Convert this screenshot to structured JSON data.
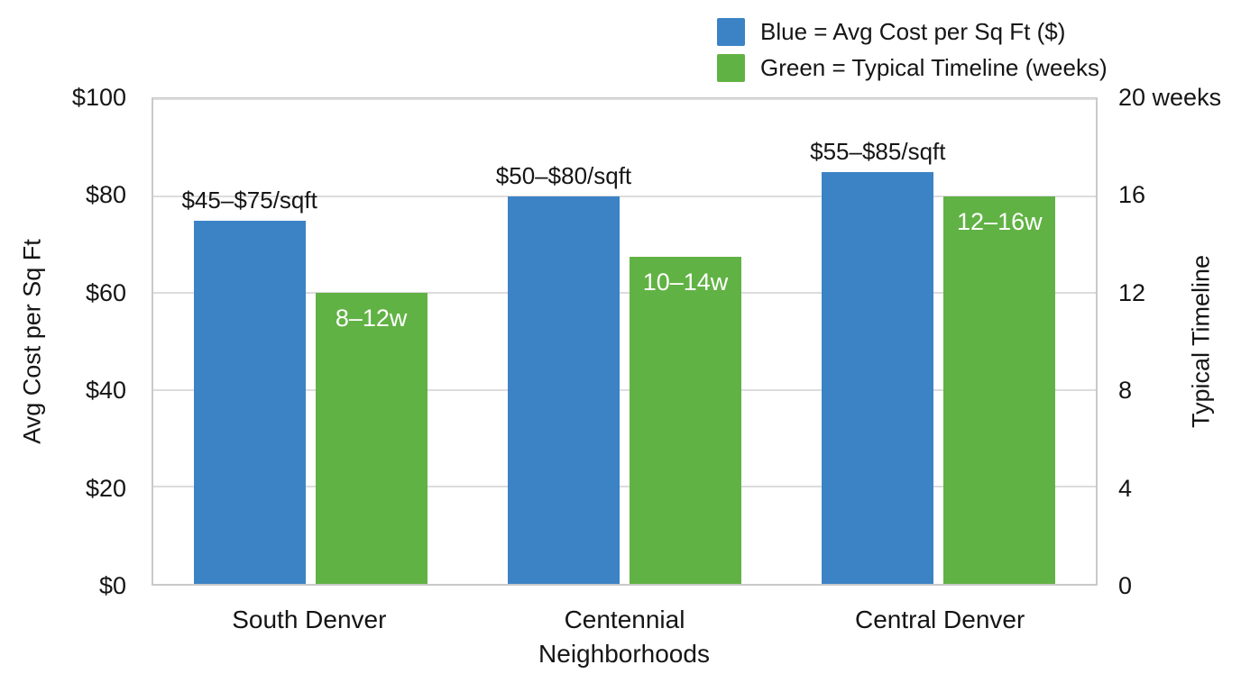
{
  "chart_data": {
    "type": "bar",
    "categories": [
      "South Denver",
      "Centennial",
      "Central Denver"
    ],
    "series": [
      {
        "name": "Avg Cost per Sq Ft ($)",
        "axis": "left",
        "color": "#3c83c5",
        "values": [
          75,
          80,
          85
        ],
        "bar_labels": [
          "$45–$75/sqft",
          "$50–$80/sqft",
          "$55–$85/sqft"
        ],
        "label_position": "above"
      },
      {
        "name": "Typical Timeline (weeks)",
        "axis": "right",
        "color": "#61b244",
        "values": [
          12,
          13.5,
          16
        ],
        "bar_labels": [
          "8–12w",
          "10–14w",
          "12–16w"
        ],
        "label_position": "inside-top"
      }
    ],
    "xlabel": "Neighborhoods",
    "ylabel_left": "Avg Cost per Sq Ft",
    "ylabel_right": "Typical Timeline",
    "left_ticks": [
      "$0",
      "$20",
      "$40",
      "$60",
      "$80",
      "$100"
    ],
    "right_ticks": [
      "0",
      "4",
      "8",
      "12",
      "16",
      "20 weeks"
    ],
    "ylim_left": [
      0,
      100
    ],
    "ylim_right": [
      0,
      20
    ],
    "grid": true,
    "legend_position": "top-right",
    "legend": [
      {
        "label": "Blue = Avg Cost per Sq Ft ($)",
        "color": "#3c83c5"
      },
      {
        "label": "Green = Typical Timeline (weeks)",
        "color": "#61b244"
      }
    ],
    "colors": {
      "bar_label_inside_text": "#ffffff",
      "gridline": "#dcdcdc",
      "text": "#151515"
    }
  }
}
